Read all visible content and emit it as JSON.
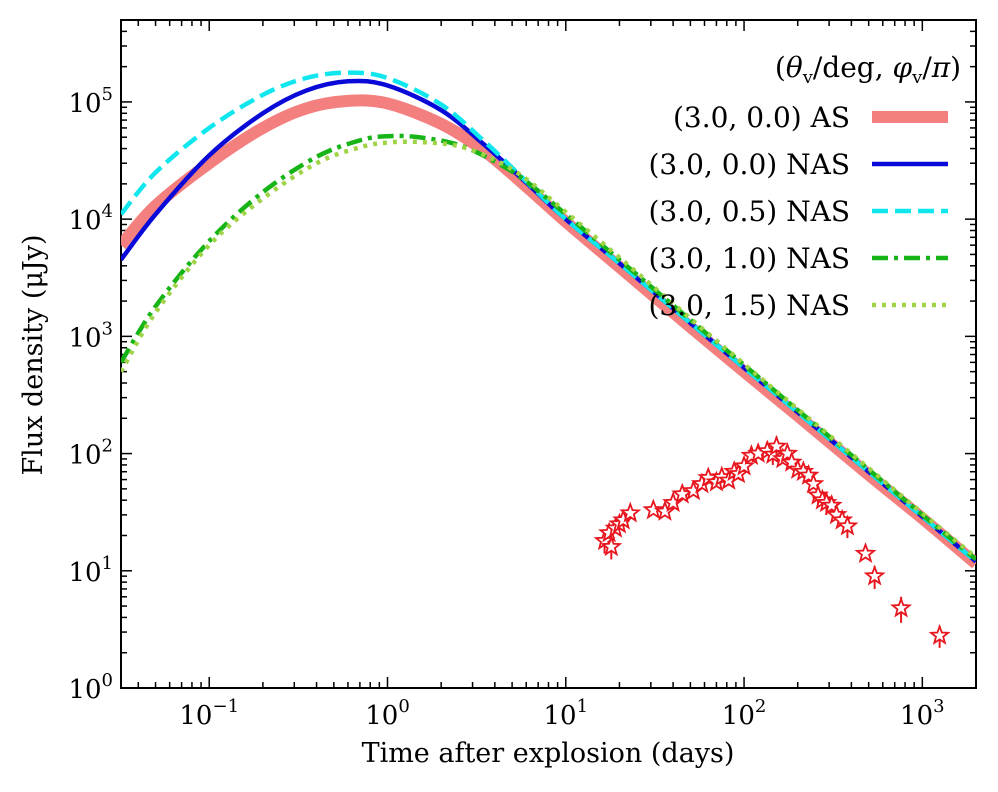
{
  "chart_data": {
    "type": "line",
    "title": "",
    "xlabel": "Time after explosion (days)",
    "ylabel": "Flux density (μJy)",
    "xscale": "log",
    "yscale": "log",
    "xlim": [
      0.032,
      2000
    ],
    "ylim": [
      1,
      500000
    ],
    "x_ticks": [
      {
        "value": 0.1,
        "base": "10",
        "exp": "−1"
      },
      {
        "value": 1,
        "base": "10",
        "exp": "0"
      },
      {
        "value": 10,
        "base": "10",
        "exp": "1"
      },
      {
        "value": 100,
        "base": "10",
        "exp": "2"
      },
      {
        "value": 1000,
        "base": "10",
        "exp": "3"
      }
    ],
    "y_ticks": [
      {
        "value": 1,
        "base": "10",
        "exp": "0"
      },
      {
        "value": 10,
        "base": "10",
        "exp": "1"
      },
      {
        "value": 100,
        "base": "10",
        "exp": "2"
      },
      {
        "value": 1000,
        "base": "10",
        "exp": "3"
      },
      {
        "value": 10000,
        "base": "10",
        "exp": "4"
      },
      {
        "value": 100000,
        "base": "10",
        "exp": "5"
      }
    ],
    "legend": {
      "title": "(θv/deg, φv/π)",
      "title_parts": [
        "(",
        "θ",
        "v",
        "/deg, ",
        "φ",
        "v",
        "/",
        "π",
        ")"
      ],
      "position": "top-right"
    },
    "series": [
      {
        "name": "(3.0, 0.0) AS",
        "color": "#f47f7f",
        "style": "solid-thick",
        "points": [
          [
            0.032,
            6000
          ],
          [
            0.05,
            13000
          ],
          [
            0.1,
            30000
          ],
          [
            0.2,
            60000
          ],
          [
            0.35,
            88000
          ],
          [
            0.6,
            102000
          ],
          [
            1.0,
            97000
          ],
          [
            2.0,
            65000
          ],
          [
            3.5,
            38000
          ],
          [
            6,
            19000
          ],
          [
            10,
            9500
          ],
          [
            20,
            3900
          ],
          [
            50,
            1200
          ],
          [
            100,
            500
          ],
          [
            200,
            210
          ],
          [
            500,
            66
          ],
          [
            1000,
            28
          ],
          [
            2000,
            11.5
          ]
        ]
      },
      {
        "name": "(3.0, 0.0) NAS",
        "color": "#0a0ad8",
        "style": "solid",
        "points": [
          [
            0.032,
            4500
          ],
          [
            0.05,
            11000
          ],
          [
            0.1,
            35000
          ],
          [
            0.2,
            80000
          ],
          [
            0.35,
            125000
          ],
          [
            0.6,
            150000
          ],
          [
            1.0,
            138000
          ],
          [
            2.0,
            85000
          ],
          [
            3.5,
            43000
          ],
          [
            6,
            20500
          ],
          [
            10,
            10000
          ],
          [
            20,
            4200
          ],
          [
            50,
            1300
          ],
          [
            100,
            540
          ],
          [
            200,
            225
          ],
          [
            500,
            70
          ],
          [
            1000,
            29
          ],
          [
            2000,
            12
          ]
        ]
      },
      {
        "name": "(3.0, 0.5) NAS",
        "color": "#10e6ee",
        "style": "dashed",
        "points": [
          [
            0.032,
            11000
          ],
          [
            0.05,
            25000
          ],
          [
            0.1,
            60000
          ],
          [
            0.2,
            115000
          ],
          [
            0.35,
            160000
          ],
          [
            0.6,
            178000
          ],
          [
            1.0,
            160000
          ],
          [
            2.0,
            95000
          ],
          [
            3.5,
            46000
          ],
          [
            6,
            21000
          ],
          [
            10,
            10000
          ],
          [
            20,
            4200
          ],
          [
            50,
            1300
          ],
          [
            100,
            540
          ],
          [
            200,
            225
          ],
          [
            500,
            70
          ],
          [
            1000,
            29
          ],
          [
            2000,
            12
          ]
        ]
      },
      {
        "name": "(3.0, 1.0) NAS",
        "color": "#16b416",
        "style": "dashdot",
        "points": [
          [
            0.032,
            600
          ],
          [
            0.05,
            1800
          ],
          [
            0.1,
            6500
          ],
          [
            0.2,
            17000
          ],
          [
            0.4,
            34000
          ],
          [
            0.7,
            47000
          ],
          [
            1.0,
            51000
          ],
          [
            1.5,
            50000
          ],
          [
            2.5,
            43000
          ],
          [
            4,
            31000
          ],
          [
            6,
            21000
          ],
          [
            10,
            11000
          ],
          [
            20,
            4500
          ],
          [
            50,
            1380
          ],
          [
            100,
            570
          ],
          [
            200,
            235
          ],
          [
            500,
            73
          ],
          [
            1000,
            30
          ],
          [
            2000,
            12.5
          ]
        ]
      },
      {
        "name": "(3.0, 1.5) NAS",
        "color": "#a0d447",
        "style": "dotted",
        "points": [
          [
            0.032,
            500
          ],
          [
            0.05,
            1600
          ],
          [
            0.1,
            6000
          ],
          [
            0.2,
            15000
          ],
          [
            0.4,
            30000
          ],
          [
            0.7,
            41000
          ],
          [
            1.0,
            45000
          ],
          [
            1.5,
            45500
          ],
          [
            2.5,
            42000
          ],
          [
            4,
            32000
          ],
          [
            6,
            22000
          ],
          [
            10,
            11500
          ],
          [
            20,
            4700
          ],
          [
            50,
            1420
          ],
          [
            100,
            580
          ],
          [
            200,
            240
          ],
          [
            500,
            75
          ],
          [
            1000,
            31
          ],
          [
            2000,
            13
          ]
        ]
      }
    ],
    "observations": {
      "name": "data",
      "color": "#e8161e",
      "marker": "star",
      "points": [
        {
          "x": 16.5,
          "y": 18,
          "lo": 14,
          "hi": 22
        },
        {
          "x": 17.5,
          "y": 21
        },
        {
          "x": 18,
          "y": 16,
          "lo": 12.5,
          "hi": 20
        },
        {
          "x": 19,
          "y": 23
        },
        {
          "x": 20,
          "y": 25
        },
        {
          "x": 21,
          "y": 27
        },
        {
          "x": 23,
          "y": 31
        },
        {
          "x": 31,
          "y": 33
        },
        {
          "x": 36,
          "y": 32
        },
        {
          "x": 40,
          "y": 38
        },
        {
          "x": 45,
          "y": 45
        },
        {
          "x": 52,
          "y": 48
        },
        {
          "x": 58,
          "y": 55
        },
        {
          "x": 63,
          "y": 62
        },
        {
          "x": 70,
          "y": 57
        },
        {
          "x": 75,
          "y": 63
        },
        {
          "x": 82,
          "y": 59
        },
        {
          "x": 88,
          "y": 70
        },
        {
          "x": 93,
          "y": 67
        },
        {
          "x": 100,
          "y": 78
        },
        {
          "x": 110,
          "y": 96
        },
        {
          "x": 120,
          "y": 100
        },
        {
          "x": 135,
          "y": 105
        },
        {
          "x": 145,
          "y": 98,
          "lo": 80,
          "hi": 120
        },
        {
          "x": 152,
          "y": 115,
          "lo": 90,
          "hi": 140
        },
        {
          "x": 165,
          "y": 90
        },
        {
          "x": 175,
          "y": 100
        },
        {
          "x": 185,
          "y": 84
        },
        {
          "x": 200,
          "y": 73
        },
        {
          "x": 215,
          "y": 70
        },
        {
          "x": 230,
          "y": 65
        },
        {
          "x": 245,
          "y": 55
        },
        {
          "x": 260,
          "y": 44,
          "lo": 35,
          "hi": 53
        },
        {
          "x": 275,
          "y": 40
        },
        {
          "x": 290,
          "y": 38,
          "lo": 30,
          "hi": 46
        },
        {
          "x": 310,
          "y": 36
        },
        {
          "x": 330,
          "y": 30
        },
        {
          "x": 355,
          "y": 27
        },
        {
          "x": 380,
          "y": 24,
          "lo": 19,
          "hi": 29
        },
        {
          "x": 480,
          "y": 14
        },
        {
          "x": 540,
          "y": 9,
          "lo": 7,
          "hi": 11
        },
        {
          "x": 760,
          "y": 4.8,
          "lo": 3.6,
          "hi": 6
        },
        {
          "x": 1250,
          "y": 2.8,
          "lo": 2.2,
          "hi": 3.4
        }
      ]
    }
  }
}
